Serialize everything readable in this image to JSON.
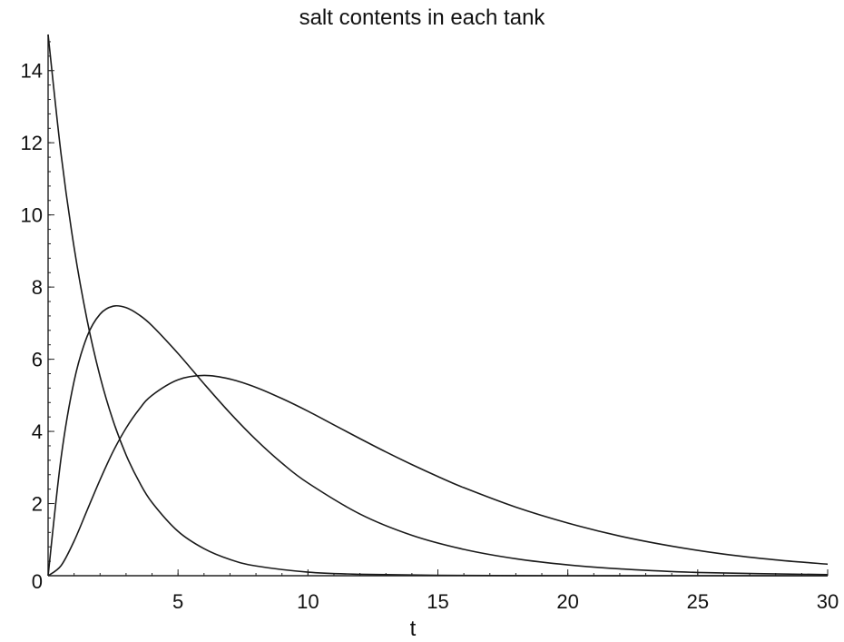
{
  "chart_data": {
    "type": "line",
    "title": "salt contents in each tank",
    "xlabel": "t",
    "ylabel": "",
    "xlim": [
      0,
      30
    ],
    "ylim": [
      0,
      15
    ],
    "x_ticks": [
      5,
      10,
      15,
      20,
      25,
      30
    ],
    "y_ticks": [
      0,
      2,
      4,
      6,
      8,
      10,
      12,
      14
    ],
    "grid": false,
    "line_color": "#1a1a1a",
    "series": [
      {
        "x": [
          0,
          0.5,
          1,
          1.5,
          2,
          2.5,
          3,
          3.5,
          4,
          5,
          6,
          7,
          8,
          10,
          12,
          15,
          20,
          25,
          30
        ],
        "values": [
          15,
          11.68,
          9.1,
          7.09,
          5.52,
          4.3,
          3.35,
          2.61,
          2.03,
          1.23,
          0.75,
          0.45,
          0.27,
          0.1,
          0.04,
          0.01,
          0.0,
          0.0,
          0.0
        ]
      },
      {
        "x": [
          0,
          0.5,
          1,
          1.5,
          2,
          2.5,
          3,
          3.5,
          4,
          5,
          6,
          7,
          8,
          9,
          10,
          12,
          14,
          16,
          18,
          20,
          22,
          25,
          30
        ],
        "values": [
          0,
          3.27,
          5.39,
          6.63,
          7.25,
          7.47,
          7.43,
          7.23,
          6.93,
          6.16,
          5.32,
          4.51,
          3.77,
          3.12,
          2.57,
          1.71,
          1.12,
          0.73,
          0.47,
          0.3,
          0.19,
          0.09,
          0.03
        ]
      },
      {
        "x": [
          0,
          0.5,
          1,
          1.5,
          2,
          2.5,
          3,
          3.5,
          4,
          5,
          6,
          7,
          8,
          9,
          10,
          11,
          12,
          13,
          14,
          15,
          16,
          18,
          20,
          22,
          24,
          26,
          28,
          30
        ],
        "values": [
          0,
          0.28,
          0.96,
          1.81,
          2.66,
          3.44,
          4.09,
          4.61,
          5.0,
          5.43,
          5.55,
          5.45,
          5.22,
          4.91,
          4.56,
          4.18,
          3.8,
          3.43,
          3.08,
          2.75,
          2.44,
          1.9,
          1.46,
          1.1,
          0.82,
          0.6,
          0.44,
          0.32
        ]
      }
    ]
  }
}
